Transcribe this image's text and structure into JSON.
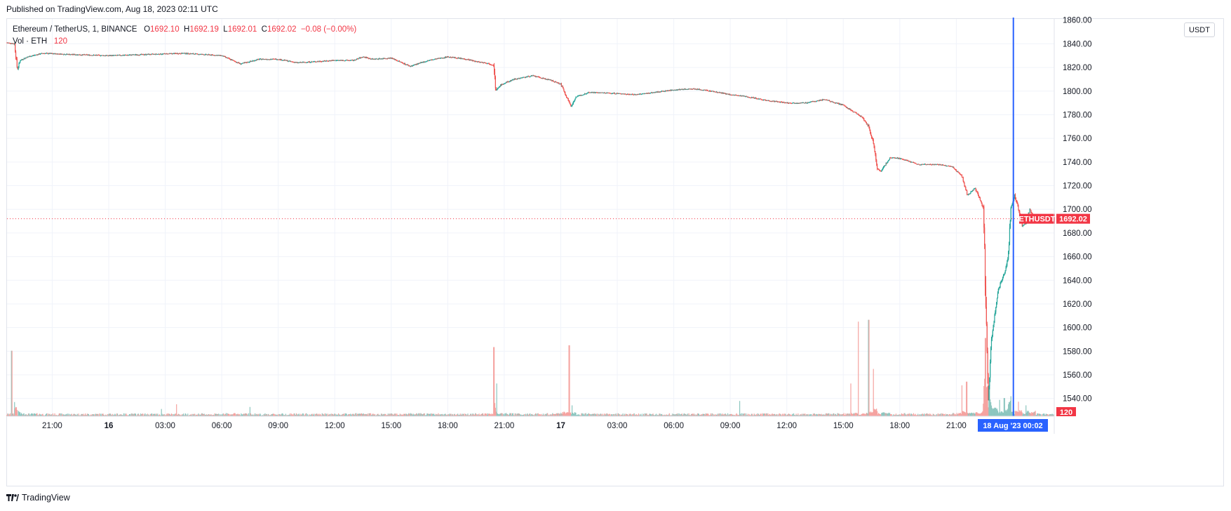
{
  "published": "Published on TradingView.com, Aug 18, 2023 02:11 UTC",
  "legend": {
    "symbol": "Ethereum / TetherUS, 1, BINANCE",
    "o_label": "O",
    "o": "1692.10",
    "h_label": "H",
    "h": "1692.19",
    "l_label": "L",
    "l": "1692.01",
    "c_label": "C",
    "c": "1692.02",
    "change": "−0.08 (−0.00%)",
    "vol_label": "Vol · ETH",
    "vol": "120"
  },
  "unit_button": "USDT",
  "footer": {
    "brand": "TradingView",
    "icon": "tradingview-logo-icon"
  },
  "colors": {
    "up": "#26a69a",
    "down": "#ef5350",
    "up_vol": "#8cc6bf",
    "down_vol": "#f5a3a0",
    "cursor": "#2962ff",
    "price_tag": "#f23645",
    "grid": "#f0f3fa",
    "text": "#131722"
  },
  "chart_data": {
    "type": "candlestick",
    "symbol": "ETHUSDT",
    "interval": "1m",
    "y_ticks": [
      1540,
      1560,
      1580,
      1600,
      1620,
      1640,
      1660,
      1680,
      1700,
      1720,
      1740,
      1760,
      1780,
      1800,
      1820,
      1840,
      1860
    ],
    "y_tick_labels": [
      "1540.00",
      "1560.00",
      "1580.00",
      "1600.00",
      "1620.00",
      "1640.00",
      "1660.00",
      "1680.00",
      "1700.00",
      "1720.00",
      "1740.00",
      "1760.00",
      "1780.00",
      "1800.00",
      "1820.00",
      "1840.00",
      "1860.00"
    ],
    "ylim": [
      1525,
      1861
    ],
    "x_ticks": [
      "21:00",
      "16",
      "03:00",
      "06:00",
      "09:00",
      "12:00",
      "15:00",
      "18:00",
      "21:00",
      "17",
      "03:00",
      "06:00",
      "09:00",
      "12:00",
      "15:00",
      "18:00",
      "21:00"
    ],
    "x_tick_hours": [
      21,
      24,
      27,
      30,
      33,
      36,
      39,
      42,
      45,
      48,
      51,
      54,
      57,
      60,
      63,
      66,
      69
    ],
    "x_range_hours": [
      18.6,
      74.2
    ],
    "cursor_time_label": "18 Aug '23   00:02",
    "cursor_hour": 72.03,
    "last_price": 1692.02,
    "last_price_label": "1692.02",
    "symbol_tag": "ETHUSDT",
    "volume_last_label": "120",
    "price_path": [
      [
        18.6,
        1841
      ],
      [
        19.0,
        1840
      ],
      [
        19.15,
        1818
      ],
      [
        19.3,
        1826
      ],
      [
        19.7,
        1829
      ],
      [
        20.5,
        1832
      ],
      [
        22,
        1831
      ],
      [
        24,
        1830
      ],
      [
        26,
        1831
      ],
      [
        28,
        1832
      ],
      [
        30,
        1830
      ],
      [
        31,
        1823
      ],
      [
        32,
        1827
      ],
      [
        33,
        1827
      ],
      [
        34,
        1824
      ],
      [
        35,
        1825
      ],
      [
        36,
        1826
      ],
      [
        37,
        1826
      ],
      [
        37.5,
        1829
      ],
      [
        38,
        1827
      ],
      [
        39,
        1828
      ],
      [
        40,
        1821
      ],
      [
        41,
        1826
      ],
      [
        42,
        1829
      ],
      [
        43,
        1827
      ],
      [
        43.5,
        1825
      ],
      [
        44,
        1824
      ],
      [
        44.45,
        1822
      ],
      [
        44.55,
        1800
      ],
      [
        44.8,
        1805
      ],
      [
        45.5,
        1810
      ],
      [
        46.5,
        1813
      ],
      [
        47.5,
        1809
      ],
      [
        48,
        1806
      ],
      [
        48.55,
        1787
      ],
      [
        48.8,
        1795
      ],
      [
        49.5,
        1799
      ],
      [
        51,
        1798
      ],
      [
        52,
        1797
      ],
      [
        53,
        1799
      ],
      [
        54,
        1801
      ],
      [
        55,
        1802
      ],
      [
        56,
        1800
      ],
      [
        57,
        1797
      ],
      [
        58,
        1795
      ],
      [
        59,
        1792
      ],
      [
        60,
        1790
      ],
      [
        61,
        1790
      ],
      [
        62,
        1793
      ],
      [
        63,
        1788
      ],
      [
        64,
        1778
      ],
      [
        64.35,
        1770
      ],
      [
        64.6,
        1756
      ],
      [
        64.8,
        1735
      ],
      [
        65,
        1732
      ],
      [
        65.5,
        1744
      ],
      [
        66,
        1743
      ],
      [
        67,
        1738
      ],
      [
        68,
        1738
      ],
      [
        68.8,
        1736
      ],
      [
        69.3,
        1728
      ],
      [
        69.6,
        1712
      ],
      [
        70,
        1718
      ],
      [
        70.3,
        1707
      ],
      [
        70.45,
        1700
      ],
      [
        70.55,
        1626
      ],
      [
        70.7,
        1540
      ],
      [
        70.85,
        1588
      ],
      [
        71.0,
        1605
      ],
      [
        71.2,
        1630
      ],
      [
        71.4,
        1640
      ],
      [
        71.6,
        1648
      ],
      [
        71.75,
        1660
      ],
      [
        71.9,
        1700
      ],
      [
        72.1,
        1712
      ],
      [
        72.3,
        1700
      ],
      [
        72.5,
        1686
      ],
      [
        72.7,
        1688
      ],
      [
        72.9,
        1700
      ],
      [
        73.2,
        1690
      ],
      [
        73.6,
        1691
      ],
      [
        74.0,
        1692.02
      ]
    ],
    "volume_spikes_eth": [
      [
        18.85,
        3600
      ],
      [
        19.0,
        780
      ],
      [
        26.8,
        400
      ],
      [
        27.6,
        660
      ],
      [
        31.5,
        510
      ],
      [
        44.45,
        3800
      ],
      [
        44.6,
        1800
      ],
      [
        48.45,
        3900
      ],
      [
        48.6,
        600
      ],
      [
        57.5,
        840
      ],
      [
        63.4,
        1800
      ],
      [
        63.8,
        5200
      ],
      [
        64.35,
        5300
      ],
      [
        64.6,
        2600
      ],
      [
        69.3,
        1700
      ],
      [
        69.55,
        1900
      ],
      [
        70.55,
        4300
      ],
      [
        70.75,
        1700
      ],
      [
        71.3,
        900
      ],
      [
        71.55,
        1000
      ],
      [
        71.9,
        1100
      ],
      [
        72.3,
        800
      ],
      [
        72.7,
        600
      ],
      [
        73.2,
        300
      ]
    ]
  }
}
